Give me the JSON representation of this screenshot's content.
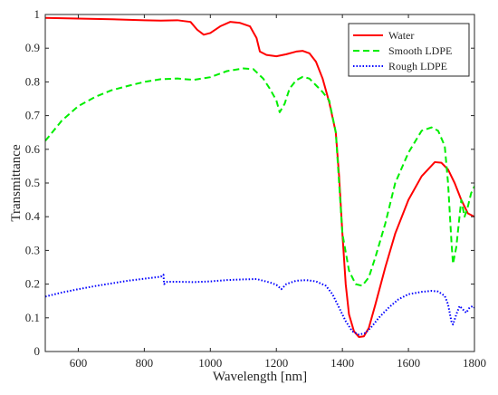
{
  "chart_data": {
    "type": "line",
    "xlabel": "Wavelength [nm]",
    "ylabel": "Transmittance",
    "xlim": [
      500,
      1800
    ],
    "ylim": [
      0,
      1
    ],
    "x_ticks": [
      600,
      800,
      1000,
      1200,
      1400,
      1600,
      1800
    ],
    "y_ticks": [
      0,
      0.1,
      0.2,
      0.3,
      0.4,
      0.5,
      0.6,
      0.7,
      0.8,
      0.9,
      1
    ],
    "x_tick_labels": [
      "600",
      "800",
      "1000",
      "1200",
      "1400",
      "1600",
      "1800"
    ],
    "y_tick_labels": [
      "0",
      "0.1",
      "0.2",
      "0.3",
      "0.4",
      "0.5",
      "0.6",
      "0.7",
      "0.8",
      "0.9",
      "1"
    ],
    "grid": false,
    "legend_position": "top-right",
    "series": [
      {
        "name": "Water",
        "color": "#ff0000",
        "style": "solid",
        "points": [
          [
            500,
            0.99
          ],
          [
            600,
            0.988
          ],
          [
            700,
            0.986
          ],
          [
            800,
            0.983
          ],
          [
            850,
            0.982
          ],
          [
            900,
            0.983
          ],
          [
            940,
            0.978
          ],
          [
            960,
            0.955
          ],
          [
            980,
            0.94
          ],
          [
            1000,
            0.945
          ],
          [
            1030,
            0.965
          ],
          [
            1060,
            0.978
          ],
          [
            1090,
            0.975
          ],
          [
            1120,
            0.965
          ],
          [
            1140,
            0.93
          ],
          [
            1150,
            0.89
          ],
          [
            1170,
            0.88
          ],
          [
            1200,
            0.876
          ],
          [
            1230,
            0.882
          ],
          [
            1260,
            0.89
          ],
          [
            1280,
            0.892
          ],
          [
            1300,
            0.885
          ],
          [
            1320,
            0.86
          ],
          [
            1340,
            0.81
          ],
          [
            1360,
            0.74
          ],
          [
            1380,
            0.65
          ],
          [
            1390,
            0.52
          ],
          [
            1400,
            0.35
          ],
          [
            1410,
            0.2
          ],
          [
            1420,
            0.11
          ],
          [
            1435,
            0.06
          ],
          [
            1450,
            0.043
          ],
          [
            1465,
            0.045
          ],
          [
            1480,
            0.07
          ],
          [
            1500,
            0.14
          ],
          [
            1530,
            0.25
          ],
          [
            1560,
            0.35
          ],
          [
            1600,
            0.45
          ],
          [
            1640,
            0.52
          ],
          [
            1680,
            0.562
          ],
          [
            1700,
            0.56
          ],
          [
            1720,
            0.54
          ],
          [
            1740,
            0.5
          ],
          [
            1760,
            0.45
          ],
          [
            1780,
            0.41
          ],
          [
            1800,
            0.4
          ]
        ]
      },
      {
        "name": "Smooth LDPE",
        "color": "#00ee00",
        "style": "dashed",
        "points": [
          [
            500,
            0.625
          ],
          [
            550,
            0.685
          ],
          [
            600,
            0.728
          ],
          [
            650,
            0.755
          ],
          [
            700,
            0.775
          ],
          [
            750,
            0.788
          ],
          [
            800,
            0.8
          ],
          [
            850,
            0.808
          ],
          [
            900,
            0.81
          ],
          [
            950,
            0.806
          ],
          [
            1000,
            0.814
          ],
          [
            1050,
            0.832
          ],
          [
            1100,
            0.84
          ],
          [
            1130,
            0.838
          ],
          [
            1160,
            0.81
          ],
          [
            1180,
            0.78
          ],
          [
            1200,
            0.745
          ],
          [
            1210,
            0.71
          ],
          [
            1225,
            0.735
          ],
          [
            1240,
            0.78
          ],
          [
            1260,
            0.805
          ],
          [
            1280,
            0.815
          ],
          [
            1300,
            0.81
          ],
          [
            1320,
            0.79
          ],
          [
            1340,
            0.77
          ],
          [
            1360,
            0.745
          ],
          [
            1380,
            0.65
          ],
          [
            1390,
            0.5
          ],
          [
            1400,
            0.35
          ],
          [
            1420,
            0.24
          ],
          [
            1440,
            0.2
          ],
          [
            1460,
            0.195
          ],
          [
            1480,
            0.22
          ],
          [
            1500,
            0.28
          ],
          [
            1530,
            0.38
          ],
          [
            1560,
            0.5
          ],
          [
            1600,
            0.59
          ],
          [
            1640,
            0.655
          ],
          [
            1670,
            0.665
          ],
          [
            1690,
            0.655
          ],
          [
            1710,
            0.61
          ],
          [
            1720,
            0.5
          ],
          [
            1730,
            0.33
          ],
          [
            1735,
            0.26
          ],
          [
            1745,
            0.31
          ],
          [
            1760,
            0.45
          ],
          [
            1770,
            0.4
          ],
          [
            1780,
            0.43
          ],
          [
            1790,
            0.47
          ],
          [
            1800,
            0.49
          ]
        ]
      },
      {
        "name": "Rough LDPE",
        "color": "#0000ff",
        "style": "dotted",
        "points": [
          [
            500,
            0.163
          ],
          [
            550,
            0.175
          ],
          [
            600,
            0.185
          ],
          [
            650,
            0.194
          ],
          [
            700,
            0.202
          ],
          [
            750,
            0.21
          ],
          [
            800,
            0.216
          ],
          [
            850,
            0.222
          ],
          [
            858,
            0.228
          ],
          [
            860,
            0.2
          ],
          [
            870,
            0.207
          ],
          [
            900,
            0.207
          ],
          [
            950,
            0.206
          ],
          [
            1000,
            0.208
          ],
          [
            1050,
            0.212
          ],
          [
            1100,
            0.214
          ],
          [
            1140,
            0.215
          ],
          [
            1160,
            0.21
          ],
          [
            1180,
            0.205
          ],
          [
            1200,
            0.198
          ],
          [
            1215,
            0.185
          ],
          [
            1230,
            0.2
          ],
          [
            1260,
            0.21
          ],
          [
            1290,
            0.212
          ],
          [
            1320,
            0.208
          ],
          [
            1350,
            0.195
          ],
          [
            1370,
            0.17
          ],
          [
            1390,
            0.13
          ],
          [
            1410,
            0.09
          ],
          [
            1430,
            0.06
          ],
          [
            1450,
            0.05
          ],
          [
            1470,
            0.055
          ],
          [
            1490,
            0.075
          ],
          [
            1510,
            0.1
          ],
          [
            1540,
            0.13
          ],
          [
            1570,
            0.155
          ],
          [
            1600,
            0.17
          ],
          [
            1640,
            0.177
          ],
          [
            1670,
            0.18
          ],
          [
            1690,
            0.178
          ],
          [
            1710,
            0.165
          ],
          [
            1720,
            0.14
          ],
          [
            1730,
            0.09
          ],
          [
            1735,
            0.08
          ],
          [
            1745,
            0.11
          ],
          [
            1755,
            0.135
          ],
          [
            1765,
            0.125
          ],
          [
            1775,
            0.115
          ],
          [
            1785,
            0.13
          ],
          [
            1795,
            0.135
          ],
          [
            1800,
            0.13
          ]
        ]
      }
    ]
  }
}
